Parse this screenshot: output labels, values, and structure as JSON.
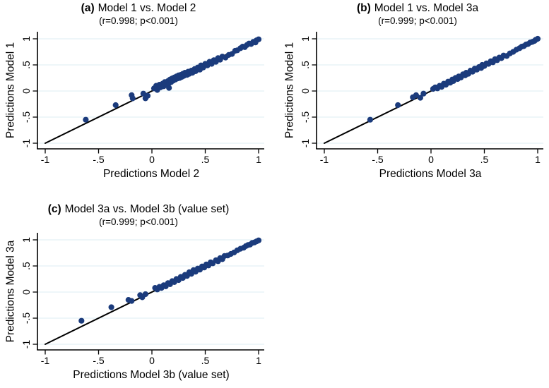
{
  "figure": {
    "background_color": "#ffffff",
    "marker_color": "#1b3b7c",
    "identity_line_color": "#000000",
    "grid_color": "#e3f0f5",
    "axis_color": "#000000",
    "text_color": "#000000"
  },
  "chart_data": [
    {
      "type": "scatter",
      "panel": "a",
      "title_prefix": "(a)",
      "title": "Model 1 vs. Model 2",
      "subtitle": "(r=0.998; p<0.001)",
      "xlabel": "Predictions Model 2",
      "ylabel": "Predictions Model 1",
      "xlim": [
        -1,
        1
      ],
      "ylim": [
        -1,
        1
      ],
      "tick_values": [
        -1,
        -0.5,
        0,
        0.5,
        1
      ],
      "x_tick_labels": [
        "-1",
        "-.5",
        "0",
        ".5",
        "1"
      ],
      "y_tick_labels": [
        "-1",
        "-.5",
        "0",
        ".5",
        "1"
      ],
      "grid": "horizontal",
      "legend": "none",
      "identity_line": [
        [
          -1,
          -1
        ],
        [
          1,
          1
        ]
      ],
      "points": [
        [
          -0.62,
          -0.55
        ],
        [
          -0.34,
          -0.27
        ],
        [
          -0.19,
          -0.08
        ],
        [
          -0.18,
          -0.14
        ],
        [
          -0.08,
          -0.05
        ],
        [
          -0.06,
          -0.14
        ],
        [
          -0.04,
          -0.09
        ],
        [
          0.02,
          0.05
        ],
        [
          0.04,
          0.1
        ],
        [
          0.05,
          0.02
        ],
        [
          0.07,
          0.12
        ],
        [
          0.08,
          0.07
        ],
        [
          0.1,
          0.14
        ],
        [
          0.11,
          0.09
        ],
        [
          0.12,
          0.17
        ],
        [
          0.13,
          0.12
        ],
        [
          0.15,
          0.19
        ],
        [
          0.16,
          0.06
        ],
        [
          0.16,
          0.15
        ],
        [
          0.17,
          0.22
        ],
        [
          0.18,
          0.17
        ],
        [
          0.19,
          0.24
        ],
        [
          0.2,
          0.2
        ],
        [
          0.21,
          0.26
        ],
        [
          0.22,
          0.22
        ],
        [
          0.23,
          0.28
        ],
        [
          0.24,
          0.24
        ],
        [
          0.25,
          0.3
        ],
        [
          0.26,
          0.25
        ],
        [
          0.27,
          0.31
        ],
        [
          0.28,
          0.27
        ],
        [
          0.29,
          0.33
        ],
        [
          0.3,
          0.29
        ],
        [
          0.31,
          0.35
        ],
        [
          0.33,
          0.31
        ],
        [
          0.34,
          0.37
        ],
        [
          0.35,
          0.33
        ],
        [
          0.37,
          0.39
        ],
        [
          0.38,
          0.35
        ],
        [
          0.4,
          0.42
        ],
        [
          0.41,
          0.38
        ],
        [
          0.43,
          0.45
        ],
        [
          0.45,
          0.41
        ],
        [
          0.46,
          0.49
        ],
        [
          0.48,
          0.45
        ],
        [
          0.5,
          0.52
        ],
        [
          0.52,
          0.49
        ],
        [
          0.54,
          0.56
        ],
        [
          0.56,
          0.52
        ],
        [
          0.58,
          0.59
        ],
        [
          0.6,
          0.56
        ],
        [
          0.62,
          0.63
        ],
        [
          0.64,
          0.6
        ],
        [
          0.66,
          0.66
        ],
        [
          0.69,
          0.64
        ],
        [
          0.72,
          0.69
        ],
        [
          0.75,
          0.71
        ],
        [
          0.78,
          0.77
        ],
        [
          0.8,
          0.78
        ],
        [
          0.83,
          0.82
        ],
        [
          0.85,
          0.85
        ],
        [
          0.87,
          0.84
        ],
        [
          0.89,
          0.88
        ],
        [
          0.91,
          0.91
        ],
        [
          0.93,
          0.9
        ],
        [
          0.95,
          0.94
        ],
        [
          0.97,
          0.93
        ],
        [
          0.98,
          0.97
        ],
        [
          1.0,
          0.99
        ]
      ]
    },
    {
      "type": "scatter",
      "panel": "b",
      "title_prefix": "(b)",
      "title": "Model 1 vs. Model 3a",
      "subtitle": "(r=0.999; p<0.001)",
      "xlabel": "Predictions Model 3a",
      "ylabel": "Predictions Model 1",
      "xlim": [
        -1,
        1
      ],
      "ylim": [
        -1,
        1
      ],
      "tick_values": [
        -1,
        -0.5,
        0,
        0.5,
        1
      ],
      "x_tick_labels": [
        "-1",
        "-.5",
        "0",
        ".5",
        "1"
      ],
      "y_tick_labels": [
        "-1",
        "-.5",
        "0",
        ".5",
        "1"
      ],
      "grid": "horizontal",
      "legend": "none",
      "identity_line": [
        [
          -1,
          -1
        ],
        [
          1,
          1
        ]
      ],
      "points": [
        [
          -0.57,
          -0.55
        ],
        [
          -0.31,
          -0.27
        ],
        [
          -0.17,
          -0.12
        ],
        [
          -0.14,
          -0.08
        ],
        [
          -0.1,
          -0.13
        ],
        [
          -0.07,
          -0.05
        ],
        [
          0.02,
          0.04
        ],
        [
          0.04,
          0.07
        ],
        [
          0.06,
          0.05
        ],
        [
          0.08,
          0.1
        ],
        [
          0.1,
          0.08
        ],
        [
          0.12,
          0.14
        ],
        [
          0.14,
          0.12
        ],
        [
          0.16,
          0.18
        ],
        [
          0.18,
          0.16
        ],
        [
          0.2,
          0.22
        ],
        [
          0.21,
          0.19
        ],
        [
          0.23,
          0.25
        ],
        [
          0.25,
          0.23
        ],
        [
          0.26,
          0.28
        ],
        [
          0.28,
          0.26
        ],
        [
          0.3,
          0.32
        ],
        [
          0.32,
          0.3
        ],
        [
          0.33,
          0.35
        ],
        [
          0.35,
          0.33
        ],
        [
          0.37,
          0.39
        ],
        [
          0.39,
          0.37
        ],
        [
          0.41,
          0.43
        ],
        [
          0.43,
          0.41
        ],
        [
          0.45,
          0.46
        ],
        [
          0.47,
          0.44
        ],
        [
          0.48,
          0.5
        ],
        [
          0.5,
          0.48
        ],
        [
          0.52,
          0.53
        ],
        [
          0.54,
          0.52
        ],
        [
          0.56,
          0.57
        ],
        [
          0.58,
          0.55
        ],
        [
          0.6,
          0.61
        ],
        [
          0.62,
          0.59
        ],
        [
          0.64,
          0.64
        ],
        [
          0.66,
          0.63
        ],
        [
          0.68,
          0.68
        ],
        [
          0.71,
          0.67
        ],
        [
          0.74,
          0.72
        ],
        [
          0.77,
          0.75
        ],
        [
          0.8,
          0.79
        ],
        [
          0.83,
          0.82
        ],
        [
          0.85,
          0.85
        ],
        [
          0.87,
          0.86
        ],
        [
          0.89,
          0.89
        ],
        [
          0.91,
          0.9
        ],
        [
          0.93,
          0.93
        ],
        [
          0.95,
          0.94
        ],
        [
          0.97,
          0.96
        ],
        [
          0.98,
          0.98
        ],
        [
          1.0,
          1.0
        ]
      ]
    },
    {
      "type": "scatter",
      "panel": "c",
      "title_prefix": "(c)",
      "title": "Model 3a vs. Model 3b (value set)",
      "subtitle": "(r=0.999; p<0.001)",
      "xlabel": "Predictions Model 3b (value set)",
      "ylabel": "Predictions Model 3a",
      "xlim": [
        -1,
        1
      ],
      "ylim": [
        -1,
        1
      ],
      "tick_values": [
        -1,
        -0.5,
        0,
        0.5,
        1
      ],
      "x_tick_labels": [
        "-1",
        "-.5",
        "0",
        ".5",
        "1"
      ],
      "y_tick_labels": [
        "-1",
        "-.5",
        "0",
        ".5",
        "1"
      ],
      "grid": "horizontal",
      "legend": "none",
      "identity_line": [
        [
          -1,
          -1
        ],
        [
          1,
          1
        ]
      ],
      "points": [
        [
          -0.66,
          -0.55
        ],
        [
          -0.38,
          -0.29
        ],
        [
          -0.22,
          -0.15
        ],
        [
          -0.19,
          -0.17
        ],
        [
          -0.11,
          -0.06
        ],
        [
          -0.09,
          -0.1
        ],
        [
          -0.06,
          -0.04
        ],
        [
          0.03,
          0.08
        ],
        [
          0.05,
          0.05
        ],
        [
          0.07,
          0.1
        ],
        [
          0.09,
          0.08
        ],
        [
          0.11,
          0.13
        ],
        [
          0.13,
          0.11
        ],
        [
          0.15,
          0.17
        ],
        [
          0.17,
          0.15
        ],
        [
          0.19,
          0.21
        ],
        [
          0.21,
          0.19
        ],
        [
          0.23,
          0.25
        ],
        [
          0.25,
          0.23
        ],
        [
          0.27,
          0.29
        ],
        [
          0.29,
          0.27
        ],
        [
          0.31,
          0.33
        ],
        [
          0.33,
          0.31
        ],
        [
          0.35,
          0.38
        ],
        [
          0.37,
          0.35
        ],
        [
          0.39,
          0.42
        ],
        [
          0.41,
          0.39
        ],
        [
          0.43,
          0.45
        ],
        [
          0.45,
          0.43
        ],
        [
          0.47,
          0.49
        ],
        [
          0.49,
          0.47
        ],
        [
          0.51,
          0.53
        ],
        [
          0.53,
          0.51
        ],
        [
          0.55,
          0.57
        ],
        [
          0.57,
          0.55
        ],
        [
          0.6,
          0.61
        ],
        [
          0.62,
          0.59
        ],
        [
          0.64,
          0.65
        ],
        [
          0.66,
          0.63
        ],
        [
          0.68,
          0.69
        ],
        [
          0.71,
          0.7
        ],
        [
          0.74,
          0.73
        ],
        [
          0.77,
          0.76
        ],
        [
          0.8,
          0.8
        ],
        [
          0.83,
          0.83
        ],
        [
          0.86,
          0.85
        ],
        [
          0.88,
          0.88
        ],
        [
          0.9,
          0.9
        ],
        [
          0.92,
          0.91
        ],
        [
          0.94,
          0.94
        ],
        [
          0.96,
          0.95
        ],
        [
          0.98,
          0.97
        ],
        [
          1.0,
          0.99
        ]
      ]
    }
  ]
}
